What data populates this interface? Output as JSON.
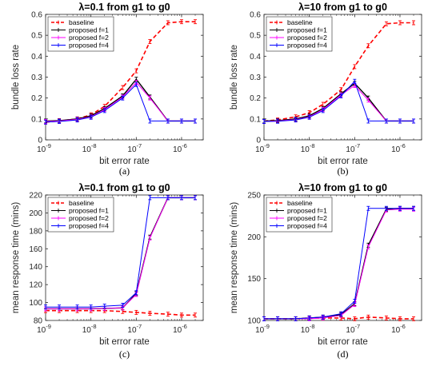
{
  "chart_data": [
    {
      "type": "line",
      "panel": "(a)",
      "title": "λ=0.1 from g1 to g0",
      "xlabel": "bit error rate",
      "ylabel": "bundle loss rate",
      "xscale": "log",
      "xlim": [
        1e-09,
        3e-06
      ],
      "ylim": [
        0,
        0.6
      ],
      "xticks": [
        1e-09,
        1e-08,
        1e-07,
        1e-06
      ],
      "xtick_labels": [
        [
          "10",
          "-9"
        ],
        [
          "10",
          "-8"
        ],
        [
          "10",
          "-7"
        ],
        [
          "10",
          "-6"
        ]
      ],
      "yticks": [
        0,
        0.1,
        0.2,
        0.3,
        0.4,
        0.5,
        0.6
      ],
      "ytick_labels": [
        "0",
        "0.1",
        "0.2",
        "0.3",
        "0.4",
        "0.5",
        "0.6"
      ],
      "grid": false,
      "legend_position": "top-left",
      "x": [
        1e-09,
        2e-09,
        5e-09,
        1e-08,
        2e-08,
        5e-08,
        1e-07,
        2e-07,
        5e-07,
        1e-06,
        2e-06
      ],
      "series": [
        {
          "name": "baseline",
          "color": "#ff0000",
          "dashed": true,
          "values": [
            0.085,
            0.09,
            0.1,
            0.12,
            0.16,
            0.25,
            0.33,
            0.47,
            0.56,
            0.565,
            0.565
          ]
        },
        {
          "name": "proposed f=1",
          "color": "#000000",
          "dashed": false,
          "values": [
            0.09,
            0.092,
            0.1,
            0.115,
            0.15,
            0.21,
            0.29,
            0.205,
            0.09,
            0.09,
            0.09
          ]
        },
        {
          "name": "proposed f=2",
          "color": "#ff00ff",
          "dashed": false,
          "values": [
            0.088,
            0.09,
            0.098,
            0.11,
            0.145,
            0.205,
            0.275,
            0.2,
            0.09,
            0.09,
            0.09
          ]
        },
        {
          "name": "proposed f=4",
          "color": "#0000ff",
          "dashed": false,
          "values": [
            0.085,
            0.088,
            0.095,
            0.108,
            0.14,
            0.2,
            0.265,
            0.09,
            0.09,
            0.09,
            0.09
          ]
        }
      ]
    },
    {
      "type": "line",
      "panel": "(b)",
      "title": "λ=10 from g1 to g0",
      "xlabel": "bit error rate",
      "ylabel": "bundle loss rate",
      "xscale": "log",
      "xlim": [
        1e-09,
        3e-06
      ],
      "ylim": [
        0,
        0.6
      ],
      "xticks": [
        1e-09,
        1e-08,
        1e-07,
        1e-06
      ],
      "xtick_labels": [
        [
          "10",
          "-9"
        ],
        [
          "10",
          "-8"
        ],
        [
          "10",
          "-7"
        ],
        [
          "10",
          "-6"
        ]
      ],
      "yticks": [
        0,
        0.1,
        0.2,
        0.3,
        0.4,
        0.5,
        0.6
      ],
      "ytick_labels": [
        "0",
        "0.1",
        "0.2",
        "0.3",
        "0.4",
        "0.5",
        "0.6"
      ],
      "grid": false,
      "legend_position": "top-left",
      "x": [
        1e-09,
        2e-09,
        5e-09,
        1e-08,
        2e-08,
        5e-08,
        1e-07,
        2e-07,
        5e-07,
        1e-06,
        2e-06
      ],
      "series": [
        {
          "name": "baseline",
          "color": "#ff0000",
          "dashed": true,
          "values": [
            0.09,
            0.095,
            0.11,
            0.13,
            0.17,
            0.24,
            0.35,
            0.45,
            0.555,
            0.56,
            0.56
          ]
        },
        {
          "name": "proposed f=1",
          "color": "#000000",
          "dashed": false,
          "values": [
            0.09,
            0.092,
            0.1,
            0.115,
            0.15,
            0.22,
            0.27,
            0.2,
            0.09,
            0.09,
            0.09
          ]
        },
        {
          "name": "proposed f=2",
          "color": "#ff00ff",
          "dashed": false,
          "values": [
            0.088,
            0.09,
            0.097,
            0.11,
            0.145,
            0.215,
            0.26,
            0.19,
            0.09,
            0.09,
            0.09
          ]
        },
        {
          "name": "proposed f=4",
          "color": "#0000ff",
          "dashed": false,
          "values": [
            0.088,
            0.089,
            0.095,
            0.108,
            0.14,
            0.21,
            0.28,
            0.09,
            0.09,
            0.09,
            0.09
          ]
        }
      ]
    },
    {
      "type": "line",
      "panel": "(c)",
      "title": "λ=0.1 from g1 to g0",
      "xlabel": "bit error rate",
      "ylabel": "mean response time (mins)",
      "xscale": "log",
      "xlim": [
        1e-09,
        3e-06
      ],
      "ylim": [
        80,
        220
      ],
      "xticks": [
        1e-09,
        1e-08,
        1e-07,
        1e-06
      ],
      "xtick_labels": [
        [
          "10",
          "-9"
        ],
        [
          "10",
          "-8"
        ],
        [
          "10",
          "-7"
        ],
        [
          "10",
          "-6"
        ]
      ],
      "yticks": [
        80,
        100,
        120,
        140,
        160,
        180,
        200,
        220
      ],
      "ytick_labels": [
        "80",
        "100",
        "120",
        "140",
        "160",
        "180",
        "200",
        "220"
      ],
      "grid": false,
      "legend_position": "top-left",
      "x": [
        1e-09,
        2e-09,
        5e-09,
        1e-08,
        2e-08,
        5e-08,
        1e-07,
        2e-07,
        5e-07,
        1e-06,
        2e-06
      ],
      "series": [
        {
          "name": "baseline",
          "color": "#ff0000",
          "dashed": true,
          "values": [
            91,
            91,
            91,
            91,
            91,
            90,
            89,
            88,
            87,
            86,
            86
          ]
        },
        {
          "name": "proposed f=1",
          "color": "#000000",
          "dashed": false,
          "values": [
            93,
            93,
            93,
            93,
            93.5,
            94,
            110,
            173,
            217,
            217,
            217
          ]
        },
        {
          "name": "proposed f=2",
          "color": "#ff00ff",
          "dashed": false,
          "values": [
            93,
            93,
            93,
            93,
            93.5,
            94,
            109,
            172,
            217,
            217,
            217
          ]
        },
        {
          "name": "proposed f=4",
          "color": "#0000ff",
          "dashed": false,
          "values": [
            95,
            95,
            95,
            95,
            96,
            97,
            111,
            217,
            217,
            217,
            217
          ]
        }
      ]
    },
    {
      "type": "line",
      "panel": "(d)",
      "title": "λ=10 from g1 to g0",
      "xlabel": "bit error rate",
      "ylabel": "mean response time (mins)",
      "xscale": "log",
      "xlim": [
        1e-09,
        3e-06
      ],
      "ylim": [
        100,
        250
      ],
      "xticks": [
        1e-09,
        1e-08,
        1e-07,
        1e-06
      ],
      "xtick_labels": [
        [
          "10",
          "-9"
        ],
        [
          "10",
          "-8"
        ],
        [
          "10",
          "-7"
        ],
        [
          "10",
          "-6"
        ]
      ],
      "yticks": [
        100,
        150,
        200,
        250
      ],
      "ytick_labels": [
        "100",
        "150",
        "200",
        "250"
      ],
      "grid": false,
      "legend_position": "top-left",
      "x": [
        1e-09,
        2e-09,
        5e-09,
        1e-08,
        2e-08,
        5e-08,
        1e-07,
        2e-07,
        5e-07,
        1e-06,
        2e-06
      ],
      "series": [
        {
          "name": "baseline",
          "color": "#ff0000",
          "dashed": true,
          "values": [
            102,
            102,
            102,
            103,
            103,
            103,
            102,
            104,
            103,
            102,
            102
          ]
        },
        {
          "name": "proposed f=1",
          "color": "#000000",
          "dashed": false,
          "values": [
            102,
            102,
            102,
            103,
            104,
            107,
            120,
            190,
            233,
            234,
            234
          ]
        },
        {
          "name": "proposed f=2",
          "color": "#ff00ff",
          "dashed": false,
          "values": [
            102,
            102,
            102,
            102,
            103,
            106,
            119,
            188,
            232,
            233,
            233
          ]
        },
        {
          "name": "proposed f=4",
          "color": "#0000ff",
          "dashed": false,
          "values": [
            102,
            102,
            102,
            103,
            104,
            108,
            123,
            234,
            234,
            234,
            234
          ]
        }
      ]
    }
  ]
}
